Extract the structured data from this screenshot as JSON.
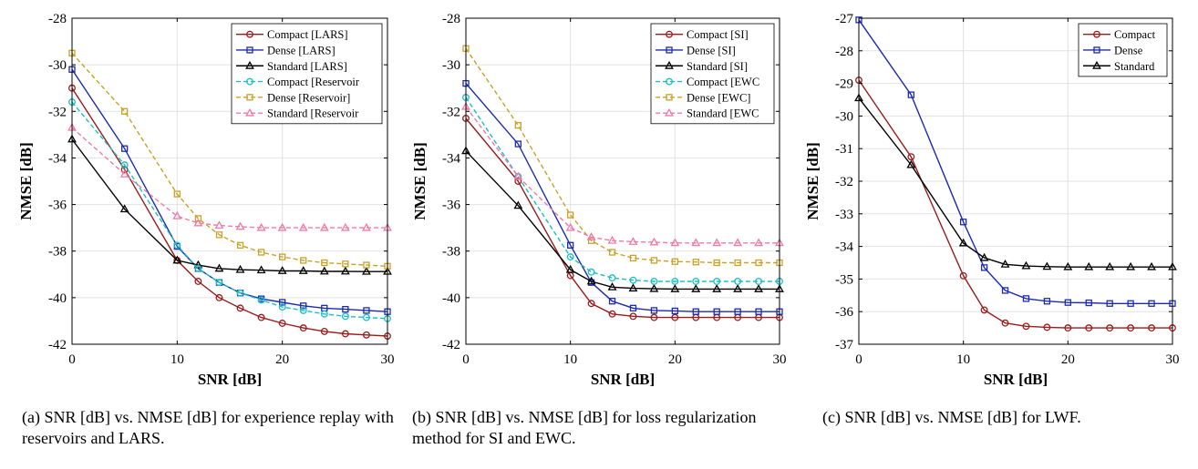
{
  "chart_data": [
    {
      "type": "line",
      "caption": "(a) SNR [dB] vs. NMSE [dB] for experience replay with reservoirs and LARS.",
      "xlabel": "SNR [dB]",
      "ylabel": "NMSE [dB]",
      "xlim": [
        0,
        30
      ],
      "ylim": [
        -42,
        -28
      ],
      "xticks": [
        0,
        10,
        20,
        30
      ],
      "yticks": [
        -42,
        -40,
        -38,
        -36,
        -34,
        -32,
        -30,
        -28
      ],
      "grid": true,
      "legend_position": "top-right",
      "series": [
        {
          "name": "Compact [LARS]",
          "color": "#9b1c1c",
          "dash": "solid",
          "marker": "circle",
          "x": [
            0,
            5,
            10,
            12,
            14,
            16,
            18,
            20,
            22,
            24,
            26,
            28,
            30
          ],
          "y": [
            -31.0,
            -34.5,
            -38.4,
            -39.3,
            -40.0,
            -40.45,
            -40.85,
            -41.1,
            -41.3,
            -41.45,
            -41.55,
            -41.6,
            -41.65
          ]
        },
        {
          "name": "Dense [LARS]",
          "color": "#1c2bb0",
          "dash": "solid",
          "marker": "square",
          "x": [
            0,
            5,
            10,
            12,
            14,
            16,
            18,
            20,
            22,
            24,
            26,
            28,
            30
          ],
          "y": [
            -30.2,
            -33.6,
            -37.8,
            -38.75,
            -39.35,
            -39.8,
            -40.05,
            -40.2,
            -40.35,
            -40.45,
            -40.5,
            -40.55,
            -40.6
          ]
        },
        {
          "name": "Standard [LARS]",
          "color": "#000000",
          "dash": "solid",
          "marker": "triangle",
          "x": [
            0,
            5,
            10,
            12,
            14,
            16,
            18,
            20,
            22,
            24,
            26,
            28,
            30
          ],
          "y": [
            -33.2,
            -36.2,
            -38.4,
            -38.6,
            -38.75,
            -38.8,
            -38.82,
            -38.85,
            -38.85,
            -38.87,
            -38.87,
            -38.88,
            -38.88
          ]
        },
        {
          "name": "Compact [Reservoir",
          "color": "#18c0c4",
          "dash": "dashed",
          "marker": "circle",
          "x": [
            0,
            5,
            10,
            12,
            14,
            16,
            18,
            20,
            22,
            24,
            26,
            28,
            30
          ],
          "y": [
            -31.6,
            -34.3,
            -37.75,
            -38.75,
            -39.35,
            -39.8,
            -40.1,
            -40.4,
            -40.55,
            -40.7,
            -40.8,
            -40.85,
            -40.9
          ]
        },
        {
          "name": "Dense [Reservoir]",
          "color": "#c9a227",
          "dash": "dashed",
          "marker": "square",
          "x": [
            0,
            5,
            10,
            12,
            14,
            16,
            18,
            20,
            22,
            24,
            26,
            28,
            30
          ],
          "y": [
            -29.5,
            -32.0,
            -35.55,
            -36.6,
            -37.3,
            -37.75,
            -38.05,
            -38.25,
            -38.4,
            -38.5,
            -38.55,
            -38.6,
            -38.65
          ]
        },
        {
          "name": "Standard [Reservoir",
          "color": "#f07aa8",
          "dash": "dashed",
          "marker": "triangle",
          "x": [
            0,
            5,
            10,
            12,
            14,
            16,
            18,
            20,
            22,
            24,
            26,
            28,
            30
          ],
          "y": [
            -32.7,
            -34.7,
            -36.5,
            -36.8,
            -36.9,
            -36.95,
            -37.0,
            -37.0,
            -37.0,
            -37.0,
            -37.0,
            -37.0,
            -37.0
          ]
        }
      ]
    },
    {
      "type": "line",
      "caption": "(b) SNR [dB] vs. NMSE [dB] for loss regularization method for SI and EWC.",
      "xlabel": "SNR [dB]",
      "ylabel": "NMSE [dB]",
      "xlim": [
        0,
        30
      ],
      "ylim": [
        -42,
        -28
      ],
      "xticks": [
        0,
        10,
        20,
        30
      ],
      "yticks": [
        -42,
        -40,
        -38,
        -36,
        -34,
        -32,
        -30,
        -28
      ],
      "grid": true,
      "legend_position": "top-right",
      "series": [
        {
          "name": "Compact [SI]",
          "color": "#9b1c1c",
          "dash": "solid",
          "marker": "circle",
          "x": [
            0,
            5,
            10,
            12,
            14,
            16,
            18,
            20,
            22,
            24,
            26,
            28,
            30
          ],
          "y": [
            -32.3,
            -35.0,
            -39.05,
            -40.25,
            -40.7,
            -40.8,
            -40.85,
            -40.85,
            -40.85,
            -40.85,
            -40.85,
            -40.85,
            -40.85
          ]
        },
        {
          "name": "Dense [SI]",
          "color": "#1c2bb0",
          "dash": "solid",
          "marker": "square",
          "x": [
            0,
            5,
            10,
            12,
            14,
            16,
            18,
            20,
            22,
            24,
            26,
            28,
            30
          ],
          "y": [
            -30.8,
            -33.4,
            -37.75,
            -39.35,
            -40.15,
            -40.45,
            -40.55,
            -40.57,
            -40.6,
            -40.6,
            -40.6,
            -40.6,
            -40.6
          ]
        },
        {
          "name": "Standard [SI]",
          "color": "#000000",
          "dash": "solid",
          "marker": "triangle",
          "x": [
            0,
            5,
            10,
            12,
            14,
            16,
            18,
            20,
            22,
            24,
            26,
            28,
            30
          ],
          "y": [
            -33.7,
            -36.05,
            -38.8,
            -39.3,
            -39.55,
            -39.6,
            -39.62,
            -39.63,
            -39.63,
            -39.63,
            -39.63,
            -39.63,
            -39.63
          ]
        },
        {
          "name": "Compact [EWC",
          "color": "#18c0c4",
          "dash": "dashed",
          "marker": "circle",
          "x": [
            0,
            5,
            10,
            12,
            14,
            16,
            18,
            20,
            22,
            24,
            26,
            28,
            30
          ],
          "y": [
            -31.4,
            -34.8,
            -38.25,
            -38.9,
            -39.15,
            -39.25,
            -39.3,
            -39.3,
            -39.3,
            -39.3,
            -39.3,
            -39.3,
            -39.3
          ]
        },
        {
          "name": "Dense [EWC]",
          "color": "#c9a227",
          "dash": "dashed",
          "marker": "square",
          "x": [
            0,
            5,
            10,
            12,
            14,
            16,
            18,
            20,
            22,
            24,
            26,
            28,
            30
          ],
          "y": [
            -29.3,
            -32.6,
            -36.45,
            -37.55,
            -38.05,
            -38.3,
            -38.4,
            -38.45,
            -38.47,
            -38.5,
            -38.5,
            -38.5,
            -38.5
          ]
        },
        {
          "name": "Standard [EWC",
          "color": "#f07aa8",
          "dash": "dashed",
          "marker": "triangle",
          "x": [
            0,
            5,
            10,
            12,
            14,
            16,
            18,
            20,
            22,
            24,
            26,
            28,
            30
          ],
          "y": [
            -31.8,
            -34.8,
            -37.0,
            -37.4,
            -37.55,
            -37.6,
            -37.62,
            -37.65,
            -37.65,
            -37.65,
            -37.65,
            -37.65,
            -37.65
          ]
        }
      ]
    },
    {
      "type": "line",
      "caption": "(c) SNR [dB] vs. NMSE [dB] for LWF.",
      "xlabel": "SNR [dB]",
      "ylabel": "NMSE [dB]",
      "xlim": [
        0,
        30
      ],
      "ylim": [
        -37,
        -27
      ],
      "xticks": [
        0,
        10,
        20,
        30
      ],
      "yticks": [
        -37,
        -36,
        -35,
        -34,
        -33,
        -32,
        -31,
        -30,
        -29,
        -28,
        -27
      ],
      "grid": true,
      "legend_position": "top-right",
      "series": [
        {
          "name": "Compact",
          "color": "#9b1c1c",
          "dash": "solid",
          "marker": "circle",
          "x": [
            0,
            5,
            10,
            12,
            14,
            16,
            18,
            20,
            22,
            24,
            26,
            28,
            30
          ],
          "y": [
            -28.9,
            -31.25,
            -34.9,
            -35.95,
            -36.35,
            -36.45,
            -36.48,
            -36.5,
            -36.5,
            -36.5,
            -36.5,
            -36.5,
            -36.5
          ]
        },
        {
          "name": "Dense",
          "color": "#1c2bb0",
          "dash": "solid",
          "marker": "square",
          "x": [
            0,
            5,
            10,
            12,
            14,
            16,
            18,
            20,
            22,
            24,
            26,
            28,
            30
          ],
          "y": [
            -27.05,
            -29.35,
            -33.25,
            -34.65,
            -35.35,
            -35.6,
            -35.68,
            -35.72,
            -35.73,
            -35.75,
            -35.75,
            -35.75,
            -35.75
          ]
        },
        {
          "name": "Standard",
          "color": "#000000",
          "dash": "solid",
          "marker": "triangle",
          "x": [
            0,
            5,
            10,
            12,
            14,
            16,
            18,
            20,
            22,
            24,
            26,
            28,
            30
          ],
          "y": [
            -29.45,
            -31.5,
            -33.9,
            -34.35,
            -34.55,
            -34.6,
            -34.62,
            -34.63,
            -34.63,
            -34.63,
            -34.63,
            -34.63,
            -34.63
          ]
        }
      ]
    }
  ]
}
